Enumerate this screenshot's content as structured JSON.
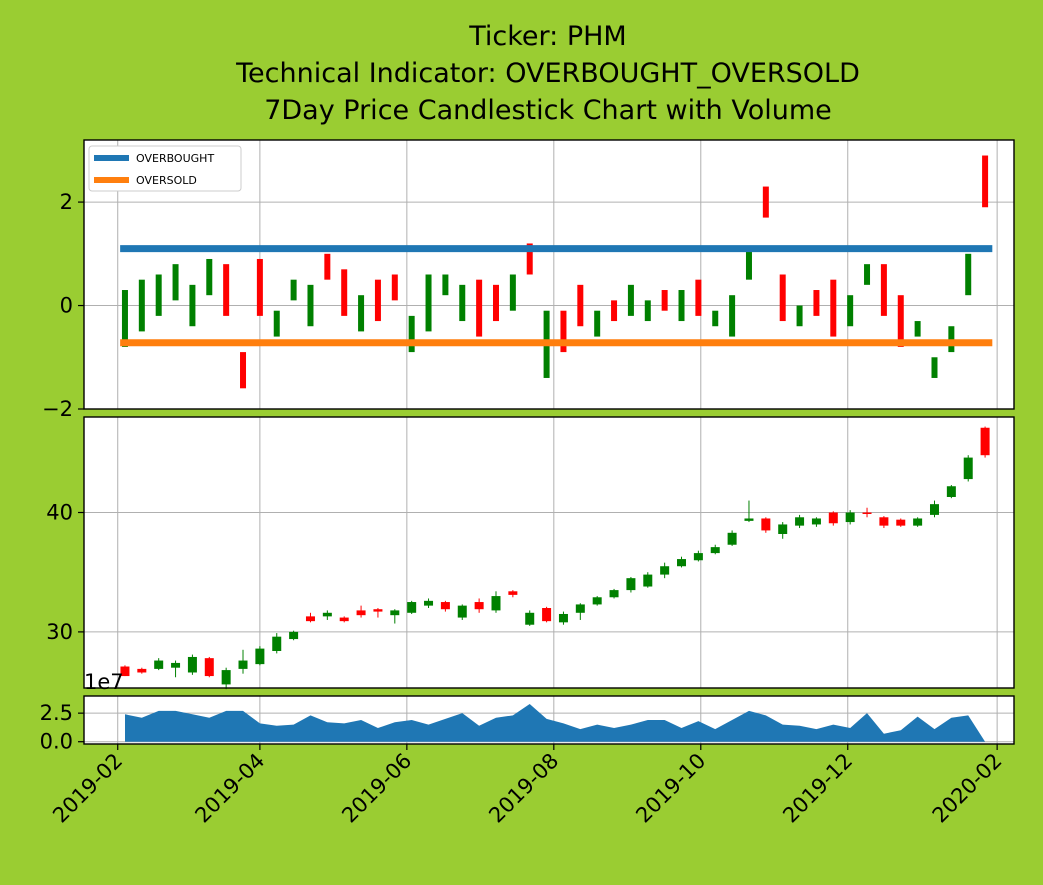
{
  "chart_data": {
    "type": "candlestick",
    "title_lines": [
      "Ticker: PHM",
      "Technical Indicator: OVERBOUGHT_OVERSOLD",
      "7Day Price Candlestick Chart with Volume"
    ],
    "x_ticks": [
      "2019-02",
      "2019-04",
      "2019-06",
      "2019-08",
      "2019-10",
      "2019-12",
      "2020-02"
    ],
    "xlim": [
      "2019-01-18",
      "2020-02-08"
    ],
    "colors": {
      "up": "#008000",
      "down": "#ff0000",
      "overbought": "#1f77b4",
      "oversold": "#ff7f0e",
      "volume": "#1f77b4"
    },
    "indicator_panel": {
      "ylim": [
        -2,
        3.2
      ],
      "y_ticks": [
        -2,
        0,
        2
      ],
      "y_tick_labels": [
        "−2",
        "0",
        "2"
      ],
      "legend": [
        "OVERBOUGHT",
        "OVERSOLD"
      ],
      "legend_location": "upper-left",
      "overbought_level": 1.1,
      "oversold_level": -0.72,
      "levels_span": [
        "2019-02-02",
        "2020-01-30"
      ],
      "indicator_candles": [
        [
          "2019-02-04",
          -0.8,
          0.3
        ],
        [
          "2019-02-11",
          -0.5,
          0.5
        ],
        [
          "2019-02-18",
          -0.2,
          0.6
        ],
        [
          "2019-02-25",
          0.1,
          0.8
        ],
        [
          "2019-03-04",
          -0.4,
          0.4
        ],
        [
          "2019-03-11",
          0.2,
          0.9
        ],
        [
          "2019-03-18",
          0.8,
          -0.2
        ],
        [
          "2019-03-25",
          -0.9,
          -1.6
        ],
        [
          "2019-04-01",
          0.9,
          -0.2
        ],
        [
          "2019-04-08",
          -0.6,
          -0.1
        ],
        [
          "2019-04-15",
          0.1,
          0.5
        ],
        [
          "2019-04-22",
          -0.4,
          0.4
        ],
        [
          "2019-04-29",
          1.0,
          0.5
        ],
        [
          "2019-05-06",
          0.7,
          -0.2
        ],
        [
          "2019-05-13",
          -0.5,
          0.2
        ],
        [
          "2019-05-20",
          0.5,
          -0.3
        ],
        [
          "2019-05-27",
          0.6,
          0.1
        ],
        [
          "2019-06-03",
          -0.9,
          -0.2
        ],
        [
          "2019-06-10",
          -0.5,
          0.6
        ],
        [
          "2019-06-17",
          0.2,
          0.6
        ],
        [
          "2019-06-24",
          -0.3,
          0.4
        ],
        [
          "2019-07-01",
          0.5,
          -0.6
        ],
        [
          "2019-07-08",
          0.4,
          -0.3
        ],
        [
          "2019-07-15",
          -0.1,
          0.6
        ],
        [
          "2019-07-22",
          1.2,
          0.6
        ],
        [
          "2019-07-29",
          -1.4,
          -0.1
        ],
        [
          "2019-08-05",
          -0.1,
          -0.9
        ],
        [
          "2019-08-12",
          0.4,
          -0.4
        ],
        [
          "2019-08-19",
          -0.6,
          -0.1
        ],
        [
          "2019-08-26",
          0.1,
          -0.3
        ],
        [
          "2019-09-02",
          -0.2,
          0.4
        ],
        [
          "2019-09-09",
          -0.3,
          0.1
        ],
        [
          "2019-09-16",
          0.3,
          -0.1
        ],
        [
          "2019-09-23",
          -0.3,
          0.3
        ],
        [
          "2019-09-30",
          0.5,
          -0.2
        ],
        [
          "2019-10-07",
          -0.4,
          -0.1
        ],
        [
          "2019-10-14",
          -0.6,
          0.2
        ],
        [
          "2019-10-21",
          0.5,
          1.1
        ],
        [
          "2019-10-28",
          2.3,
          1.7
        ],
        [
          "2019-11-04",
          0.6,
          -0.3
        ],
        [
          "2019-11-11",
          -0.4,
          0.0
        ],
        [
          "2019-11-18",
          0.3,
          -0.2
        ],
        [
          "2019-11-25",
          0.5,
          -0.6
        ],
        [
          "2019-12-02",
          -0.4,
          0.2
        ],
        [
          "2019-12-09",
          0.4,
          0.8
        ],
        [
          "2019-12-16",
          0.8,
          -0.2
        ],
        [
          "2019-12-23",
          0.2,
          -0.8
        ],
        [
          "2019-12-30",
          -0.6,
          -0.3
        ],
        [
          "2020-01-06",
          -1.4,
          -1.0
        ],
        [
          "2020-01-13",
          -0.9,
          -0.4
        ],
        [
          "2020-01-20",
          0.2,
          1.0
        ],
        [
          "2020-01-27",
          2.9,
          1.9
        ]
      ]
    },
    "price_panel": {
      "ylim": [
        25.3,
        48
      ],
      "y_ticks": [
        30,
        40
      ],
      "y_tick_labels": [
        "30",
        "40"
      ],
      "candles": [
        [
          "2019-02-04",
          27.1,
          26.3,
          27.2,
          26.3
        ],
        [
          "2019-02-11",
          26.9,
          26.6,
          27.0,
          26.5
        ],
        [
          "2019-02-18",
          26.9,
          27.6,
          27.8,
          26.8
        ],
        [
          "2019-02-25",
          27.0,
          27.4,
          27.6,
          26.2
        ],
        [
          "2019-03-04",
          26.6,
          27.9,
          28.1,
          26.4
        ],
        [
          "2019-03-11",
          27.8,
          26.3,
          27.9,
          26.2
        ],
        [
          "2019-03-18",
          25.6,
          26.8,
          27.0,
          25.2
        ],
        [
          "2019-03-25",
          26.9,
          27.6,
          28.5,
          26.5
        ],
        [
          "2019-04-01",
          27.3,
          28.6,
          28.8,
          27.2
        ],
        [
          "2019-04-08",
          28.4,
          29.6,
          29.9,
          28.2
        ],
        [
          "2019-04-15",
          29.4,
          30.0,
          30.1,
          29.3
        ],
        [
          "2019-04-22",
          31.3,
          30.9,
          31.6,
          30.8
        ],
        [
          "2019-04-29",
          31.3,
          31.6,
          31.8,
          31.0
        ],
        [
          "2019-05-06",
          31.2,
          30.9,
          31.3,
          30.8
        ],
        [
          "2019-05-13",
          31.8,
          31.4,
          32.2,
          31.2
        ],
        [
          "2019-05-20",
          31.9,
          31.7,
          32.0,
          31.2
        ],
        [
          "2019-05-27",
          31.4,
          31.8,
          31.9,
          30.7
        ],
        [
          "2019-06-03",
          31.6,
          32.5,
          32.6,
          31.5
        ],
        [
          "2019-06-10",
          32.2,
          32.6,
          32.8,
          32.0
        ],
        [
          "2019-06-17",
          32.5,
          31.9,
          32.6,
          31.7
        ],
        [
          "2019-06-24",
          31.2,
          32.2,
          32.3,
          31.0
        ],
        [
          "2019-07-01",
          32.5,
          31.9,
          32.8,
          31.6
        ],
        [
          "2019-07-08",
          31.8,
          33.0,
          33.4,
          31.6
        ],
        [
          "2019-07-15",
          33.4,
          33.1,
          33.5,
          32.9
        ],
        [
          "2019-07-22",
          30.6,
          31.6,
          31.8,
          30.5
        ],
        [
          "2019-07-29",
          32.0,
          30.9,
          32.1,
          30.8
        ],
        [
          "2019-08-05",
          30.8,
          31.5,
          31.7,
          30.6
        ],
        [
          "2019-08-12",
          31.6,
          32.3,
          32.4,
          31.0
        ],
        [
          "2019-08-19",
          32.3,
          32.9,
          33.0,
          32.2
        ],
        [
          "2019-08-26",
          32.9,
          33.5,
          33.6,
          32.8
        ],
        [
          "2019-09-02",
          33.5,
          34.5,
          34.6,
          33.3
        ],
        [
          "2019-09-09",
          33.8,
          34.8,
          35.0,
          33.7
        ],
        [
          "2019-09-16",
          34.8,
          35.5,
          35.8,
          34.5
        ],
        [
          "2019-09-23",
          35.5,
          36.1,
          36.3,
          35.4
        ],
        [
          "2019-09-30",
          36.0,
          36.6,
          36.8,
          35.9
        ],
        [
          "2019-10-07",
          36.6,
          37.1,
          37.3,
          36.5
        ],
        [
          "2019-10-14",
          37.3,
          38.3,
          38.5,
          37.2
        ],
        [
          "2019-10-21",
          39.3,
          39.5,
          41.0,
          39.2
        ],
        [
          "2019-10-28",
          39.5,
          38.5,
          39.6,
          38.3
        ],
        [
          "2019-11-04",
          38.2,
          39.0,
          39.2,
          37.8
        ],
        [
          "2019-11-11",
          38.9,
          39.6,
          39.8,
          38.7
        ],
        [
          "2019-11-18",
          39.0,
          39.5,
          39.6,
          38.8
        ],
        [
          "2019-11-25",
          40.0,
          39.1,
          40.1,
          38.9
        ],
        [
          "2019-12-02",
          39.2,
          40.0,
          40.2,
          39.0
        ],
        [
          "2019-12-09",
          40.0,
          39.9,
          40.4,
          39.6
        ],
        [
          "2019-12-16",
          39.6,
          38.9,
          39.7,
          38.7
        ],
        [
          "2019-12-23",
          39.4,
          38.9,
          39.5,
          38.8
        ],
        [
          "2019-12-30",
          38.9,
          39.5,
          39.6,
          38.8
        ],
        [
          "2020-01-06",
          39.8,
          40.7,
          41.0,
          39.6
        ],
        [
          "2020-01-13",
          41.3,
          42.2,
          42.3,
          41.2
        ],
        [
          "2020-01-20",
          42.8,
          44.6,
          44.8,
          42.6
        ],
        [
          "2020-01-27",
          47.1,
          44.8,
          47.2,
          44.6
        ]
      ]
    },
    "volume_panel": {
      "ylim": [
        -0.2,
        4.0
      ],
      "y_ticks": [
        0,
        2.5
      ],
      "y_tick_labels": [
        "0.0",
        "2.5"
      ],
      "offset_label": "1e7",
      "dates": [
        "2019-02-04",
        "2019-02-11",
        "2019-02-18",
        "2019-02-25",
        "2019-03-04",
        "2019-03-11",
        "2019-03-18",
        "2019-03-25",
        "2019-04-01",
        "2019-04-08",
        "2019-04-15",
        "2019-04-22",
        "2019-04-29",
        "2019-05-06",
        "2019-05-13",
        "2019-05-20",
        "2019-05-27",
        "2019-06-03",
        "2019-06-10",
        "2019-06-17",
        "2019-06-24",
        "2019-07-01",
        "2019-07-08",
        "2019-07-15",
        "2019-07-22",
        "2019-07-29",
        "2019-08-05",
        "2019-08-12",
        "2019-08-19",
        "2019-08-26",
        "2019-09-02",
        "2019-09-09",
        "2019-09-16",
        "2019-09-23",
        "2019-09-30",
        "2019-10-07",
        "2019-10-14",
        "2019-10-21",
        "2019-10-28",
        "2019-11-04",
        "2019-11-11",
        "2019-11-18",
        "2019-11-25",
        "2019-12-02",
        "2019-12-09",
        "2019-12-16",
        "2019-12-23",
        "2019-12-30",
        "2020-01-06",
        "2020-01-13",
        "2020-01-20",
        "2020-01-27"
      ],
      "values": [
        2.4,
        2.1,
        2.7,
        2.7,
        2.4,
        2.1,
        2.7,
        2.7,
        1.6,
        1.4,
        1.5,
        2.3,
        1.7,
        1.6,
        1.9,
        1.2,
        1.7,
        1.9,
        1.5,
        2.0,
        2.5,
        1.4,
        2.1,
        2.3,
        3.3,
        2.0,
        1.6,
        1.1,
        1.5,
        1.2,
        1.5,
        1.9,
        1.9,
        1.2,
        1.8,
        1.1,
        1.9,
        2.7,
        2.3,
        1.5,
        1.4,
        1.1,
        1.5,
        1.2,
        2.5,
        0.7,
        1.0,
        2.2,
        1.1,
        2.1,
        2.3,
        0.0
      ]
    }
  }
}
